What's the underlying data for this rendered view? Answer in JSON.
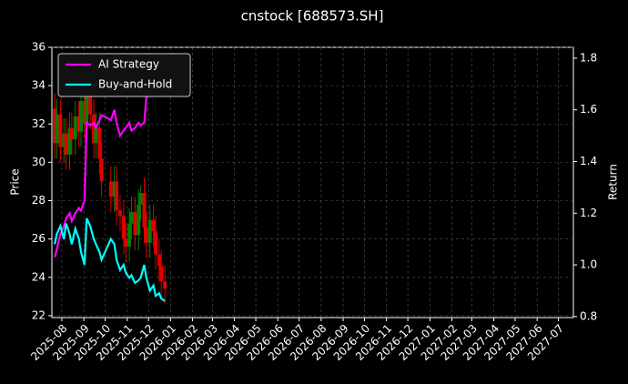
{
  "chart_data": {
    "type": "candlestick",
    "title": "cnstock [688573.SH]",
    "ylabel": "Price",
    "y2label": "Return",
    "x": [
      "2025-07-22",
      "2025-07-25",
      "2025-07-30",
      "2025-08-04",
      "2025-08-07",
      "2025-08-12",
      "2025-08-15",
      "2025-08-20",
      "2025-08-25",
      "2025-08-28",
      "2025-09-02",
      "2025-09-05",
      "2025-09-10",
      "2025-09-15",
      "2025-09-18",
      "2025-09-23",
      "2025-09-26",
      "2025-10-09",
      "2025-10-14",
      "2025-10-17",
      "2025-10-22",
      "2025-10-27",
      "2025-10-30",
      "2025-11-04",
      "2025-11-07",
      "2025-11-12",
      "2025-11-17",
      "2025-11-20",
      "2025-11-25",
      "2025-11-28",
      "2025-12-03",
      "2025-12-08",
      "2025-12-11",
      "2025-12-16",
      "2025-12-19",
      "2025-12-24"
    ],
    "candles": {
      "up_color": "#008000",
      "down_color": "#e00000",
      "open": [
        32.8,
        31.0,
        32.5,
        30.8,
        31.5,
        30.4,
        31.8,
        31.2,
        32.4,
        31.6,
        33.2,
        32.0,
        33.8,
        32.5,
        31.0,
        31.8,
        30.2,
        29.0,
        28.2,
        29.0,
        27.5,
        27.2,
        26.0,
        25.6,
        26.8,
        27.4,
        26.2,
        27.8,
        28.4,
        26.6,
        25.8,
        27.0,
        26.4,
        25.2,
        24.6,
        23.8
      ],
      "high": [
        33.6,
        33.3,
        33.3,
        32.3,
        32.3,
        32.6,
        32.6,
        33.2,
        33.2,
        34.0,
        34.0,
        34.6,
        34.6,
        33.3,
        32.6,
        32.6,
        31.0,
        29.8,
        29.8,
        29.8,
        28.3,
        28.0,
        26.8,
        27.6,
        28.2,
        28.2,
        28.6,
        28.8,
        29.2,
        27.4,
        27.8,
        27.8,
        27.2,
        26.0,
        25.4,
        24.6
      ],
      "low": [
        30.2,
        30.2,
        30.0,
        30.0,
        29.6,
        29.6,
        30.4,
        30.4,
        30.8,
        30.8,
        31.2,
        31.2,
        31.7,
        30.2,
        30.2,
        29.4,
        28.2,
        27.4,
        27.4,
        26.7,
        26.4,
        25.2,
        24.8,
        24.8,
        26.0,
        25.4,
        25.4,
        27.0,
        25.8,
        25.0,
        25.0,
        25.6,
        24.4,
        23.8,
        23.0,
        22.6
      ],
      "close": [
        31.0,
        32.5,
        30.8,
        31.5,
        30.4,
        31.8,
        31.2,
        32.4,
        31.6,
        33.2,
        32.0,
        33.8,
        32.5,
        31.0,
        31.8,
        30.2,
        29.0,
        28.2,
        29.0,
        27.5,
        27.2,
        26.0,
        25.6,
        26.8,
        27.4,
        26.2,
        27.8,
        28.4,
        26.6,
        25.8,
        27.0,
        26.4,
        25.2,
        24.6,
        23.8,
        23.4
      ]
    },
    "series": [
      {
        "name": "AI Strategy",
        "color": "#ff00ff",
        "axis": "y2",
        "values": [
          1.03,
          1.06,
          1.12,
          1.15,
          1.18,
          1.2,
          1.17,
          1.2,
          1.22,
          1.21,
          1.25,
          1.55,
          1.54,
          1.55,
          1.53,
          1.56,
          1.58,
          1.56,
          1.6,
          1.55,
          1.5,
          1.52,
          1.53,
          1.55,
          1.52,
          1.53,
          1.55,
          1.54,
          1.55,
          1.65,
          1.7,
          1.72,
          1.75,
          1.77,
          1.78,
          1.78
        ]
      },
      {
        "name": "Buy-and-Hold",
        "color": "#00ffff",
        "axis": "y2",
        "values": [
          1.08,
          1.12,
          1.15,
          1.1,
          1.16,
          1.12,
          1.08,
          1.14,
          1.1,
          1.05,
          1.0,
          1.18,
          1.15,
          1.1,
          1.08,
          1.05,
          1.02,
          1.1,
          1.08,
          1.02,
          0.98,
          1.0,
          0.97,
          0.95,
          0.96,
          0.93,
          0.94,
          0.95,
          1.0,
          0.95,
          0.9,
          0.92,
          0.88,
          0.89,
          0.87,
          0.86
        ]
      }
    ],
    "xlim": [
      "2025-07-18",
      "2027-07-22"
    ],
    "xticks": [
      "2025-08",
      "2025-09",
      "2025-10",
      "2025-11",
      "2025-12",
      "2026-01",
      "2026-02",
      "2026-03",
      "2026-04",
      "2026-05",
      "2026-06",
      "2026-07",
      "2026-08",
      "2026-09",
      "2026-10",
      "2026-11",
      "2026-12",
      "2027-01",
      "2027-02",
      "2027-03",
      "2027-04",
      "2027-05",
      "2027-06",
      "2027-07"
    ],
    "ylim": [
      21.9,
      36
    ],
    "yticks": [
      22,
      24,
      26,
      28,
      30,
      32,
      34,
      36
    ],
    "y2lim": [
      0.796,
      1.842
    ],
    "y2ticks": [
      {
        "value": 0.8,
        "label": "0.8"
      },
      {
        "value": 1.0,
        "label": "1.0"
      },
      {
        "value": 1.2,
        "label": "1.2"
      },
      {
        "value": 1.4,
        "label": "1.4"
      },
      {
        "value": 1.6,
        "label": "1.6"
      },
      {
        "value": 1.8,
        "label": "1.8"
      }
    ],
    "grid": true,
    "legend": "upper left"
  }
}
